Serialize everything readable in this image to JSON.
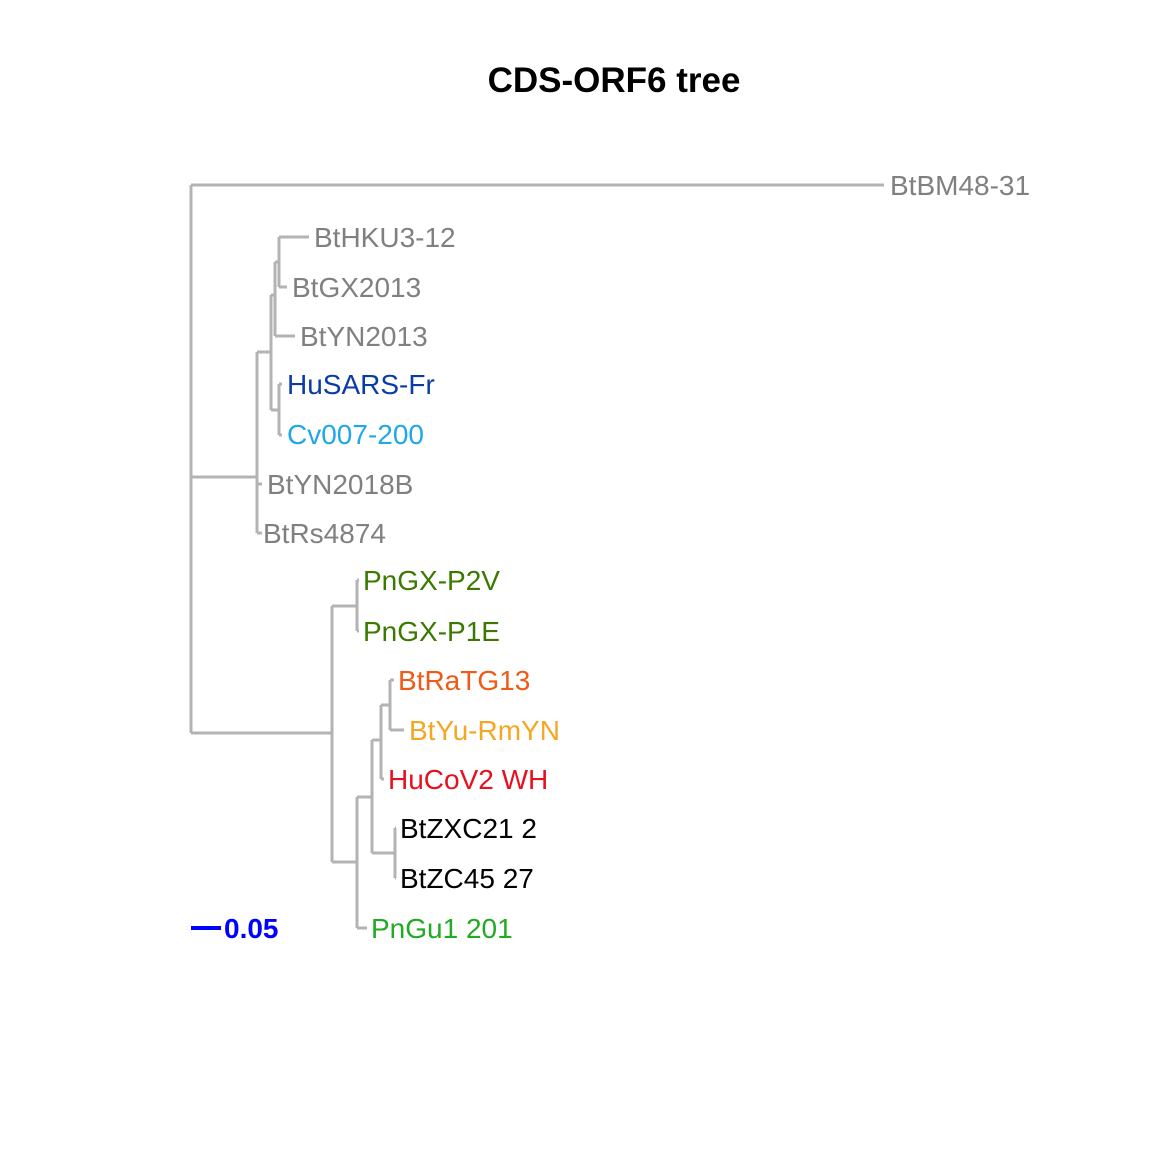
{
  "title": "CDS-ORF6 tree",
  "branch_color": "#b3b3b3",
  "leaves": [
    {
      "id": "btbm48",
      "label": "BtBM48-31",
      "color": "#808080"
    },
    {
      "id": "bthku3",
      "label": "BtHKU3-12",
      "color": "#808080"
    },
    {
      "id": "btgx2013",
      "label": "BtGX2013",
      "color": "#808080"
    },
    {
      "id": "btyn2013",
      "label": "BtYN2013",
      "color": "#808080"
    },
    {
      "id": "husarsfr",
      "label": "HuSARS-Fr",
      "color": "#0a3ca8"
    },
    {
      "id": "cv007",
      "label": "Cv007-200",
      "color": "#1ea8e8"
    },
    {
      "id": "btyn2018b",
      "label": "BtYN2018B",
      "color": "#808080"
    },
    {
      "id": "btrs4874",
      "label": "BtRs4874",
      "color": "#808080"
    },
    {
      "id": "pngxp2v",
      "label": "PnGX-P2V",
      "color": "#3a7a00"
    },
    {
      "id": "pngxp1e",
      "label": "PnGX-P1E",
      "color": "#3a7a00"
    },
    {
      "id": "btratg13",
      "label": "BtRaTG13",
      "color": "#f05a14"
    },
    {
      "id": "btyurmyn",
      "label": "BtYu-RmYN",
      "color": "#f5a623"
    },
    {
      "id": "hucov2wh",
      "label": "HuCoV2 WH",
      "color": "#e8101e"
    },
    {
      "id": "btzxc21",
      "label": "BtZXC21 2",
      "color": "#000000"
    },
    {
      "id": "btzc45",
      "label": "BtZC45 27",
      "color": "#000000"
    },
    {
      "id": "pngu1",
      "label": "PnGu1 201",
      "color": "#22aa22"
    }
  ],
  "scale_bar": {
    "label": "0.05",
    "value": 0.05,
    "color": "#0000ff"
  }
}
